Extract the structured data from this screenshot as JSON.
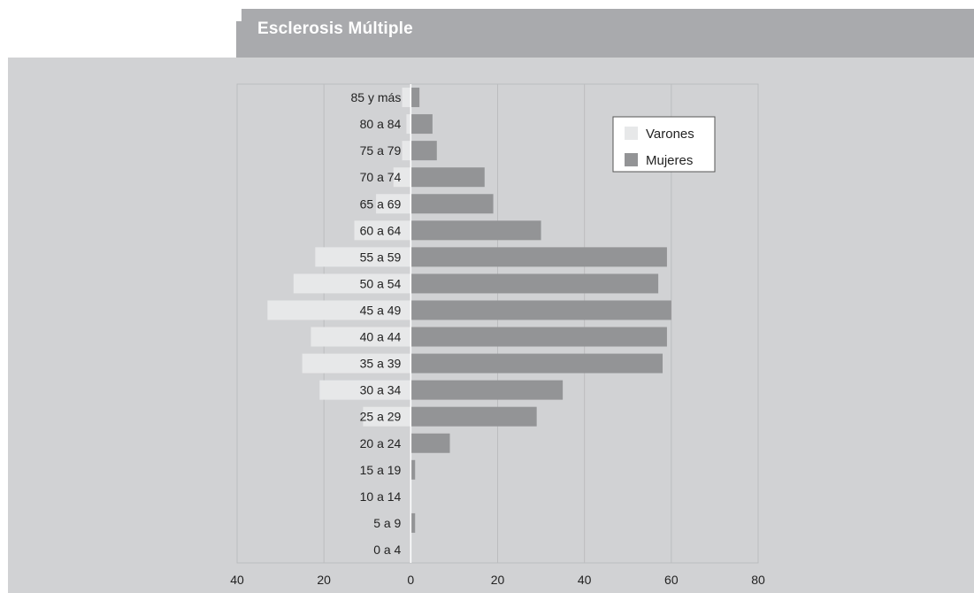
{
  "header": {
    "title": "Esclerosis Múltiple"
  },
  "colors": {
    "panel": "#d1d2d4",
    "header": "#a9aaad",
    "varones": "#e7e8e9",
    "mujeres": "#939496",
    "grid": "#bcbdbf"
  },
  "chart_data": {
    "type": "bar",
    "orientation": "horizontal",
    "title": "Esclerosis Múltiple",
    "categories": [
      "0 a 4",
      "5 a 9",
      "10 a 14",
      "15 a 19",
      "20 a 24",
      "25 a 29",
      "30 a 34",
      "35 a 39",
      "40 a 44",
      "45 a 49",
      "50 a 54",
      "55 a 59",
      "60 a 64",
      "65 a 69",
      "70 a 74",
      "75 a 79",
      "80 a 84",
      "85 y más"
    ],
    "series": [
      {
        "name": "Varones",
        "side": "left",
        "values": [
          0,
          0,
          0,
          0,
          0,
          11,
          21,
          25,
          23,
          33,
          27,
          22,
          13,
          8,
          4,
          2,
          1,
          2
        ]
      },
      {
        "name": "Mujeres",
        "side": "right",
        "values": [
          0,
          1,
          0,
          1,
          9,
          29,
          35,
          58,
          59,
          60,
          57,
          59,
          30,
          19,
          17,
          6,
          5,
          2
        ]
      }
    ],
    "x_ticks": [
      "40",
      "20",
      "0",
      "20",
      "40",
      "60",
      "80"
    ],
    "xlim": [
      -40,
      80
    ],
    "grid": true,
    "legend_position": "top-right"
  }
}
